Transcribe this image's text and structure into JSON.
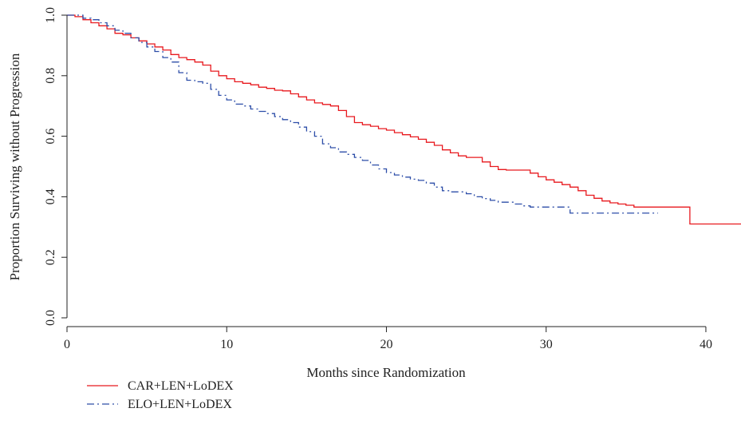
{
  "chart_data": {
    "type": "line",
    "subtype": "kaplan-meier step",
    "title": "",
    "xlabel": "Months since Randomization",
    "ylabel": "Proportion Surviving without Progression",
    "xlim": [
      0,
      42.2
    ],
    "ylim": [
      0,
      1
    ],
    "x_ticks": [
      0,
      10,
      20,
      30,
      40
    ],
    "y_ticks": [
      0.0,
      0.2,
      0.4,
      0.6,
      0.8,
      1.0
    ],
    "x_tick_labels": [
      "0",
      "10",
      "20",
      "30",
      "40"
    ],
    "y_tick_labels": [
      "0.0",
      "0.2",
      "0.4",
      "0.6",
      "0.8",
      "1.0"
    ],
    "grid": false,
    "legend_position": "bottom-left",
    "series": [
      {
        "name": "CAR+LEN+LoDEX",
        "color": "#e8191e",
        "line_style": "solid",
        "points": [
          [
            0,
            1.0
          ],
          [
            0.5,
            0.995
          ],
          [
            1,
            0.985
          ],
          [
            1.5,
            0.975
          ],
          [
            2,
            0.965
          ],
          [
            2.5,
            0.955
          ],
          [
            3,
            0.94
          ],
          [
            3.5,
            0.935
          ],
          [
            4,
            0.925
          ],
          [
            4.5,
            0.915
          ],
          [
            5,
            0.905
          ],
          [
            5.5,
            0.895
          ],
          [
            6,
            0.885
          ],
          [
            6.5,
            0.87
          ],
          [
            7,
            0.86
          ],
          [
            7.5,
            0.853
          ],
          [
            8,
            0.845
          ],
          [
            8.5,
            0.835
          ],
          [
            9,
            0.815
          ],
          [
            9.5,
            0.8
          ],
          [
            10,
            0.79
          ],
          [
            10.5,
            0.78
          ],
          [
            11,
            0.775
          ],
          [
            11.5,
            0.77
          ],
          [
            12,
            0.762
          ],
          [
            12.5,
            0.758
          ],
          [
            13,
            0.752
          ],
          [
            13.5,
            0.75
          ],
          [
            14,
            0.74
          ],
          [
            14.5,
            0.73
          ],
          [
            15,
            0.72
          ],
          [
            15.5,
            0.71
          ],
          [
            16,
            0.705
          ],
          [
            16.5,
            0.7
          ],
          [
            17,
            0.685
          ],
          [
            17.5,
            0.665
          ],
          [
            18,
            0.645
          ],
          [
            18.5,
            0.638
          ],
          [
            19,
            0.633
          ],
          [
            19.5,
            0.625
          ],
          [
            20,
            0.62
          ],
          [
            20.5,
            0.612
          ],
          [
            21,
            0.605
          ],
          [
            21.5,
            0.598
          ],
          [
            22,
            0.59
          ],
          [
            22.5,
            0.58
          ],
          [
            23,
            0.57
          ],
          [
            23.5,
            0.555
          ],
          [
            24,
            0.545
          ],
          [
            24.5,
            0.535
          ],
          [
            25,
            0.53
          ],
          [
            26,
            0.515
          ],
          [
            26.5,
            0.5
          ],
          [
            27,
            0.49
          ],
          [
            27.5,
            0.488
          ],
          [
            28,
            0.488
          ],
          [
            29,
            0.478
          ],
          [
            29.5,
            0.466
          ],
          [
            30,
            0.456
          ],
          [
            30.5,
            0.448
          ],
          [
            31,
            0.44
          ],
          [
            31.5,
            0.432
          ],
          [
            32,
            0.42
          ],
          [
            32.5,
            0.405
          ],
          [
            33,
            0.395
          ],
          [
            33.5,
            0.386
          ],
          [
            34,
            0.38
          ],
          [
            34.5,
            0.376
          ],
          [
            35,
            0.372
          ],
          [
            35.5,
            0.366
          ],
          [
            36,
            0.366
          ],
          [
            38,
            0.366
          ],
          [
            39,
            0.31
          ],
          [
            42.2,
            0.31
          ]
        ]
      },
      {
        "name": "ELO+LEN+LoDEX",
        "color": "#2d4ea8",
        "line_style": "dash-dot",
        "points": [
          [
            0,
            1.0
          ],
          [
            0.5,
            1.0
          ],
          [
            1,
            0.99
          ],
          [
            1.5,
            0.985
          ],
          [
            2,
            0.975
          ],
          [
            2.5,
            0.965
          ],
          [
            3,
            0.95
          ],
          [
            3.5,
            0.94
          ],
          [
            4,
            0.925
          ],
          [
            4.5,
            0.91
          ],
          [
            5,
            0.895
          ],
          [
            5.5,
            0.88
          ],
          [
            6,
            0.86
          ],
          [
            6.5,
            0.845
          ],
          [
            7,
            0.81
          ],
          [
            7.5,
            0.785
          ],
          [
            8,
            0.78
          ],
          [
            8.5,
            0.775
          ],
          [
            9,
            0.755
          ],
          [
            9.5,
            0.735
          ],
          [
            10,
            0.72
          ],
          [
            10.5,
            0.706
          ],
          [
            11,
            0.7
          ],
          [
            11.5,
            0.69
          ],
          [
            12,
            0.682
          ],
          [
            12.5,
            0.675
          ],
          [
            13,
            0.665
          ],
          [
            13.5,
            0.655
          ],
          [
            14,
            0.645
          ],
          [
            14.5,
            0.63
          ],
          [
            15,
            0.615
          ],
          [
            15.5,
            0.6
          ],
          [
            16,
            0.575
          ],
          [
            16.5,
            0.562
          ],
          [
            17,
            0.548
          ],
          [
            17.5,
            0.54
          ],
          [
            18,
            0.53
          ],
          [
            18.5,
            0.52
          ],
          [
            19,
            0.505
          ],
          [
            19.5,
            0.492
          ],
          [
            20,
            0.48
          ],
          [
            20.5,
            0.472
          ],
          [
            21,
            0.465
          ],
          [
            21.5,
            0.458
          ],
          [
            22,
            0.454
          ],
          [
            22.5,
            0.445
          ],
          [
            23,
            0.432
          ],
          [
            23.5,
            0.42
          ],
          [
            24,
            0.416
          ],
          [
            25,
            0.41
          ],
          [
            25.5,
            0.4
          ],
          [
            26,
            0.394
          ],
          [
            26.5,
            0.388
          ],
          [
            27,
            0.382
          ],
          [
            28,
            0.376
          ],
          [
            28.5,
            0.37
          ],
          [
            29,
            0.366
          ],
          [
            30,
            0.366
          ],
          [
            31.5,
            0.346
          ],
          [
            33,
            0.346
          ],
          [
            35,
            0.346
          ],
          [
            37,
            0.346
          ]
        ]
      }
    ]
  }
}
